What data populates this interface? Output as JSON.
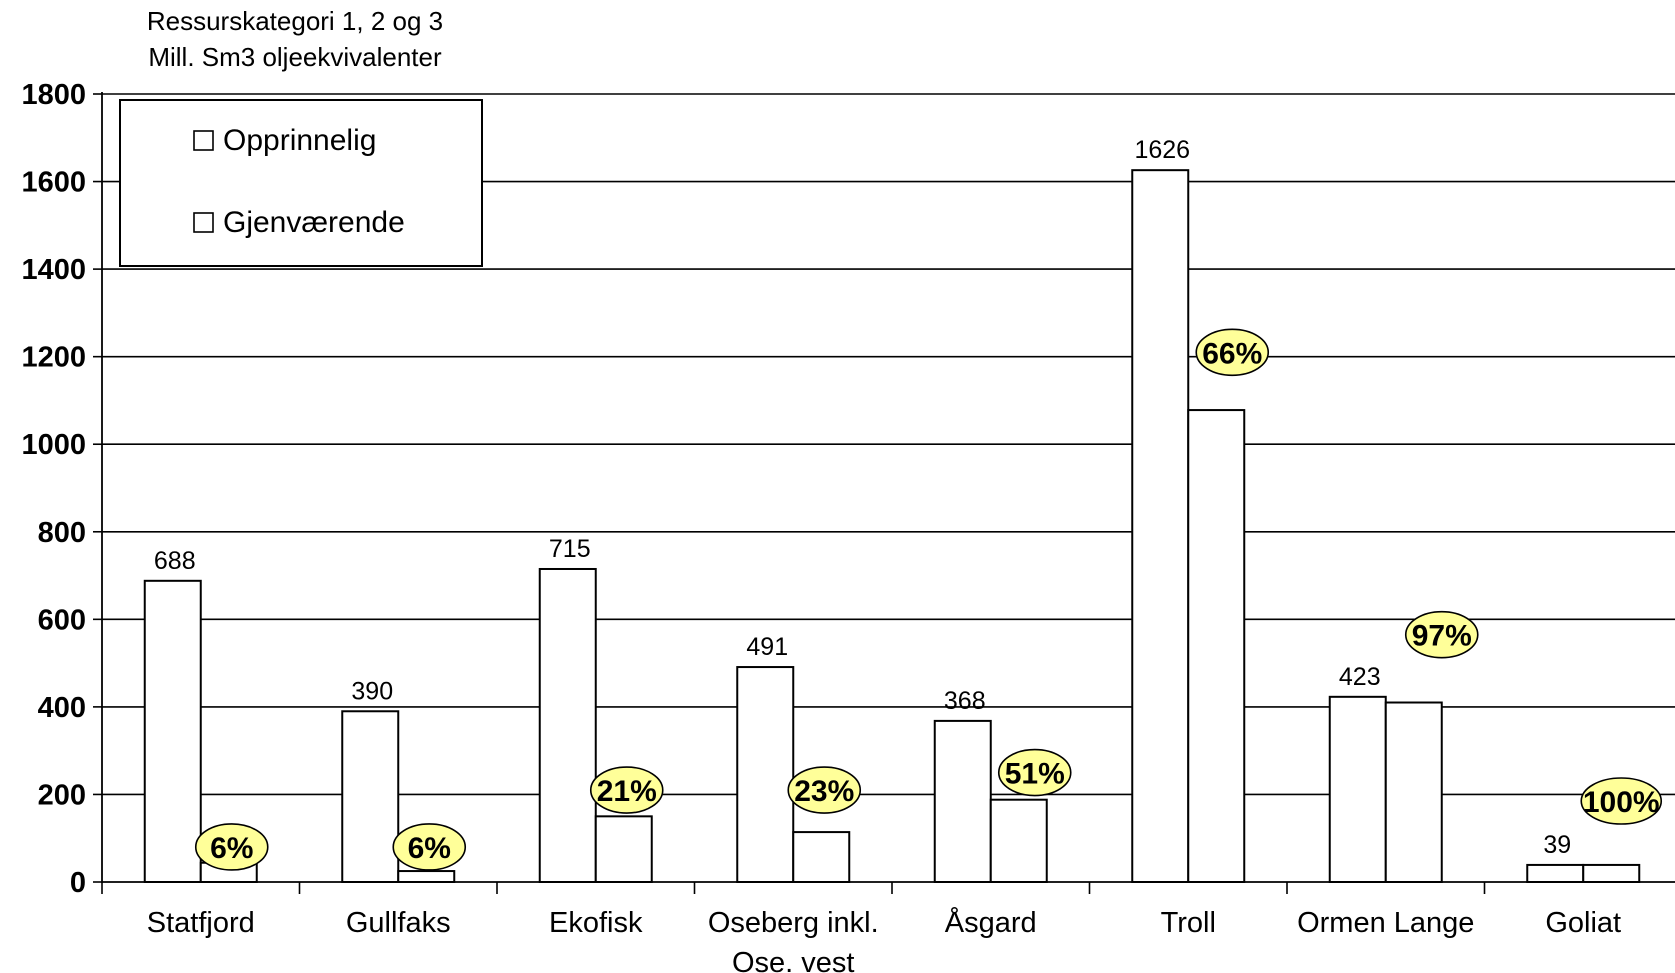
{
  "chart_data": {
    "type": "bar",
    "ylabel_lines": [
      "Ressurskategori 1, 2 og 3",
      "Mill. Sm3 oljeekvivalenter"
    ],
    "ylim": [
      0,
      1800
    ],
    "yticks": [
      "0",
      "200",
      "400",
      "600",
      "800",
      "1000",
      "1200",
      "1400",
      "1600",
      "1800"
    ],
    "grid": true,
    "legend_position": "top-left",
    "categories": [
      [
        "Statfjord"
      ],
      [
        "Gullfaks"
      ],
      [
        "Ekofisk"
      ],
      [
        "Oseberg inkl.",
        "Ose. vest"
      ],
      [
        "Åsgard"
      ],
      [
        "Troll"
      ],
      [
        "Ormen Lange"
      ],
      [
        "Goliat"
      ]
    ],
    "series": [
      {
        "name": "Opprinnelig",
        "values": [
          688,
          390,
          715,
          491,
          368,
          1626,
          423,
          39
        ]
      },
      {
        "name": "Gjenværende",
        "values": [
          44,
          25,
          150,
          114,
          188,
          1078,
          410,
          39
        ]
      }
    ],
    "value_labels": [
      "688",
      "390",
      "715",
      "491",
      "368",
      "1626",
      "423",
      "39"
    ],
    "percent_labels": [
      "6%",
      "6%",
      "21%",
      "23%",
      "51%",
      "66%",
      "97%",
      "100%"
    ],
    "colors": {
      "bar_fill": "#ffffff",
      "bar_stroke": "#000000",
      "badge_fill": "#ffff99"
    }
  }
}
